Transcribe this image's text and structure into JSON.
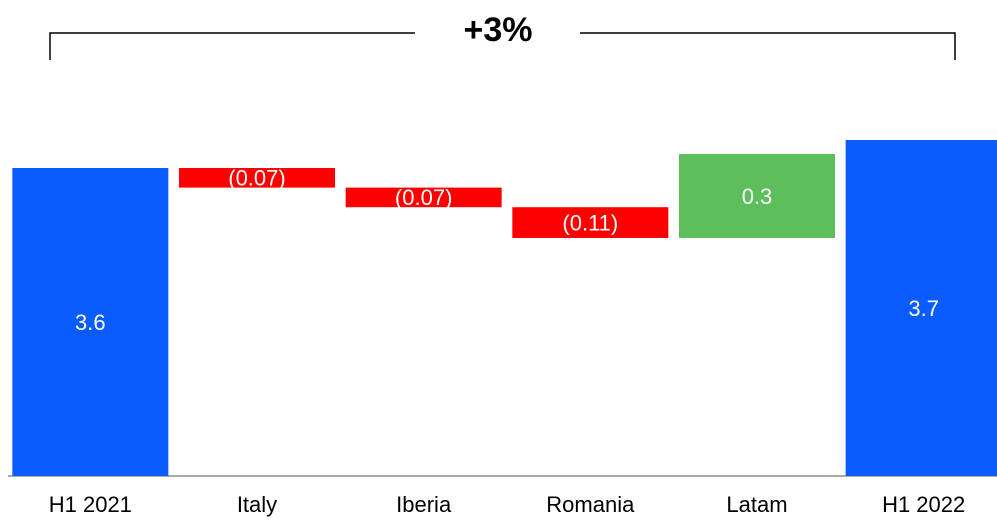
{
  "chart_data": {
    "type": "waterfall",
    "annotation": "+3%",
    "categories": [
      "H1 2021",
      "Italy",
      "Iberia",
      "Romania",
      "Latam",
      "H1 2022"
    ],
    "values": [
      3.6,
      -0.07,
      -0.07,
      -0.11,
      0.3,
      3.7
    ],
    "value_labels": [
      "3.6",
      "(0.07)",
      "(0.07)",
      "(0.11)",
      "0.3",
      "3.7"
    ],
    "totals": [
      true,
      false,
      false,
      false,
      false,
      true
    ],
    "colors": {
      "total": "#0a5cff",
      "increase": "#5cbf5c",
      "decrease": "#ff0000"
    },
    "ylim": [
      2.5,
      3.8
    ]
  }
}
